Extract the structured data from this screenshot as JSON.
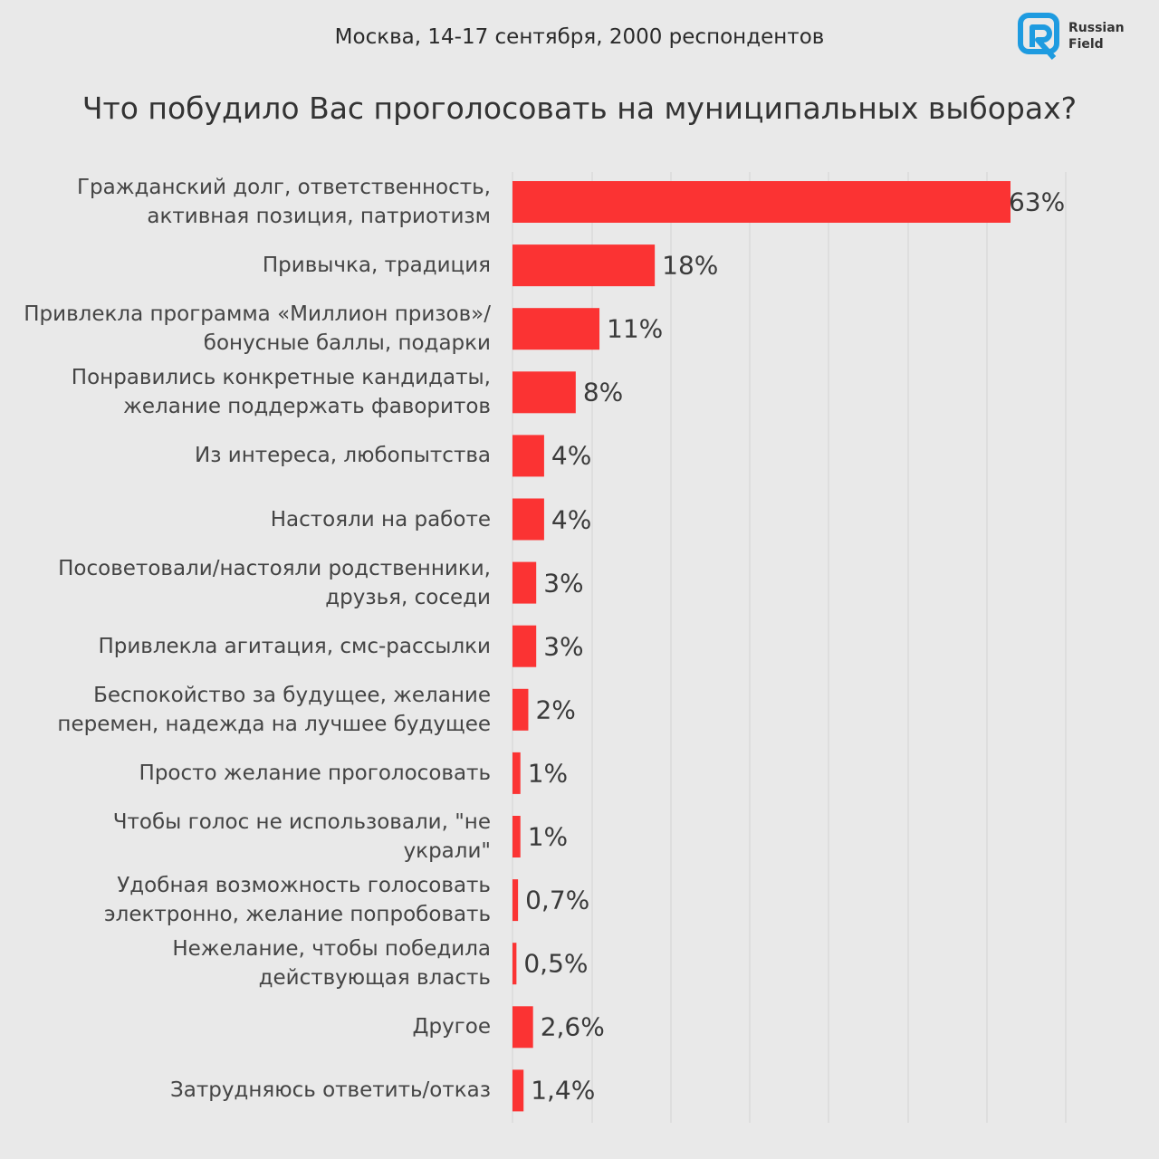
{
  "header": {
    "subtitle": "Москва, 14-17 сентября, 2000 респондентов",
    "title": "Что побудило Вас проголосовать на муниципальных выборах?",
    "logo_line1": "Russian",
    "logo_line2": "Field"
  },
  "colors": {
    "bar": "#fb3333",
    "logo": "#1e9be0",
    "background": "#e9e9e9",
    "grid": "#d2d2d2"
  },
  "chart_data": {
    "type": "bar",
    "orientation": "horizontal",
    "title": "Что побудило Вас проголосовать на муниципальных выборах?",
    "subtitle": "Москва, 14-17 сентября, 2000 респондентов",
    "xlim": [
      0,
      70
    ],
    "grid": true,
    "categories": [
      "Гражданский долг, ответственность, активная позиция, патриотизм",
      "Привычка, традиция",
      "Привлекла программа «Миллион призов»/ бонусные баллы, подарки",
      "Понравились конкретные кандидаты, желание поддержать фаворитов",
      "Из интереса, любопытства",
      "Настояли на работе",
      "Посоветовали/настояли родственники, друзья, соседи",
      "Привлекла агитация, смс-рассылки",
      "Беспокойство за будущее, желание перемен, надежда на лучшее будущее",
      "Просто желание проголосовать",
      "Чтобы голос не использовали, \"не украли\"",
      "Удобная возможность голосовать электронно, желание попробовать",
      "Нежелание, чтобы победила действующая власть",
      "Другое",
      "Затрудняюсь ответить/отказ"
    ],
    "values": [
      63,
      18,
      11,
      8,
      4,
      4,
      3,
      3,
      2,
      1,
      1,
      0.7,
      0.5,
      2.6,
      1.4
    ],
    "value_labels": [
      "63%",
      "18%",
      "11%",
      "8%",
      "4%",
      "4%",
      "3%",
      "3%",
      "2%",
      "1%",
      "1%",
      "0,7%",
      "0,5%",
      "2,6%",
      "1,4%"
    ]
  }
}
